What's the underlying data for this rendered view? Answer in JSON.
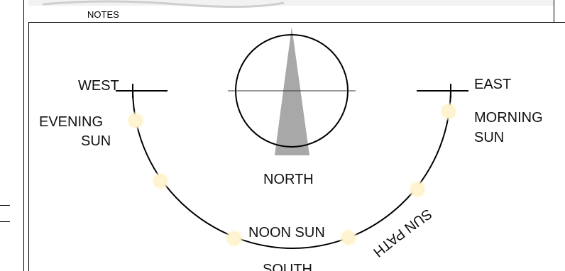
{
  "header": {
    "section_label": "NOTES"
  },
  "diagram": {
    "west": "WEST",
    "east": "EAST",
    "north": "NORTH",
    "south": "SOUTH",
    "evening_sun_line1": "EVENING",
    "evening_sun_line2": "SUN",
    "morning_sun_line1": "MORNING",
    "morning_sun_line2": "SUN",
    "noon_sun": "NOON SUN",
    "sun_path": "SUN PATH",
    "colors": {
      "line": "#000000",
      "needle": "#a8a8a8",
      "sun_glow": "#fff3c8",
      "sun_core": "#fffaf0"
    }
  }
}
